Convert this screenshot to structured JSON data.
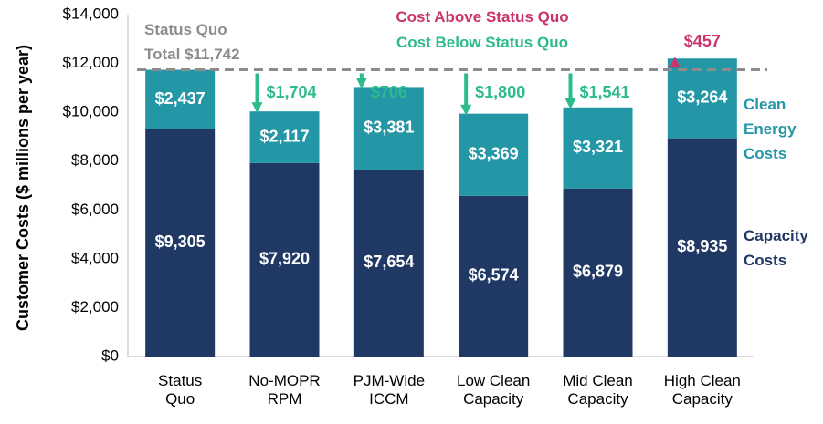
{
  "chart_data": {
    "type": "stacked_bar",
    "y_label": "Customer Costs ($ millions per year)",
    "categories": [
      "Status\nQuo",
      "No-MOPR\nRPM",
      "PJM-Wide\nICCM",
      "Low Clean\nCapacity",
      "Mid Clean\nCapacity",
      "High Clean\nCapacity"
    ],
    "series": [
      {
        "name": "Capacity\nCosts",
        "color": "#203864",
        "values": [
          9305,
          7920,
          7654,
          6574,
          6879,
          8935
        ],
        "value_labels": [
          "$9,305",
          "$7,920",
          "$7,654",
          "$6,574",
          "$6,879",
          "$8,935"
        ]
      },
      {
        "name": "Clean\nEnergy\nCosts",
        "color": "#2497a7",
        "values": [
          2437,
          2117,
          3381,
          3369,
          3321,
          3264
        ],
        "value_labels": [
          "$2,437",
          "$2,117",
          "$3,381",
          "$3,369",
          "$3,321",
          "$3,264"
        ]
      }
    ],
    "reference": {
      "value": 11742,
      "label": "Status Quo\nTotal $11,742",
      "color": "#8c8c8c"
    },
    "differences": {
      "values": [
        null,
        1704,
        706,
        1800,
        1541,
        457
      ],
      "value_labels": [
        null,
        "$1,704",
        "$706",
        "$1,800",
        "$1,541",
        "$457"
      ]
    },
    "above": {
      "label": "Cost Above Status Quo",
      "color": "#c9356c"
    },
    "below": {
      "label": "Cost Below Status Quo",
      "color": "#2dbb8b"
    },
    "ylim": [
      0,
      14000
    ],
    "yticks": [
      {
        "value": 0,
        "label": "$0"
      },
      {
        "value": 2000,
        "label": "$2,000"
      },
      {
        "value": 4000,
        "label": "$4,000"
      },
      {
        "value": 6000,
        "label": "$6,000"
      },
      {
        "value": 8000,
        "label": "$8,000"
      },
      {
        "value": 10000,
        "label": "$10,000"
      },
      {
        "value": 12000,
        "label": "$12,000"
      },
      {
        "value": 14000,
        "label": "$14,000"
      }
    ],
    "grid": false
  }
}
